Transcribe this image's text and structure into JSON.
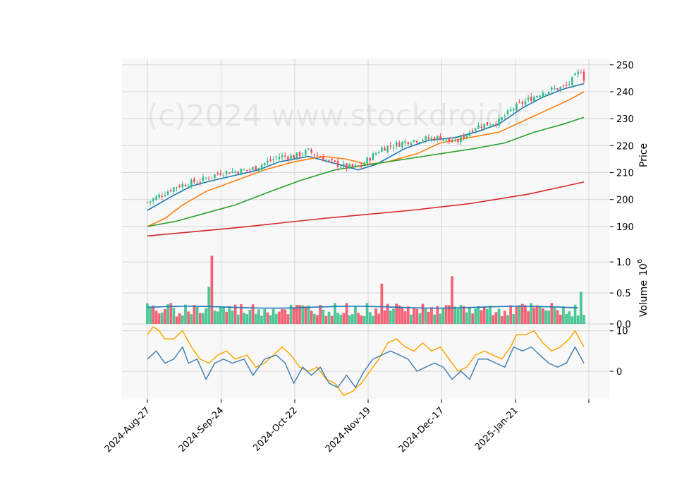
{
  "watermark": "(c)2024 www.stockdroid.c",
  "colors": {
    "up": "#2ebd85",
    "down": "#f6465d",
    "panel_bg": "#f8f8f8",
    "grid": "#d6d6d6",
    "ma_short": "#1f77b4",
    "ma_mid": "#ff7f0e",
    "ma_long": "#2ca02c",
    "ma_200": "#d62728",
    "vol_ma": "#1f77b4",
    "osc_fast": "#4682b4",
    "osc_slow": "#ffa500"
  },
  "chart_data": [
    {
      "type": "candlestick",
      "ylabel": "Price",
      "ylim": [
        185,
        251
      ],
      "yticks": [
        "190",
        "200",
        "210",
        "220",
        "230",
        "240",
        "250"
      ],
      "xticks": [
        "2024-Aug-27",
        "2024-Sep-24",
        "2024-Oct-22",
        "2024-Nov-19",
        "2024-Dec-17",
        "2025-Jan-21"
      ],
      "grid": true,
      "keypoints": [
        {
          "i": 0,
          "close": 199
        },
        {
          "i": 10,
          "close": 205
        },
        {
          "i": 18,
          "close": 207
        },
        {
          "i": 25,
          "close": 210
        },
        {
          "i": 35,
          "close": 211
        },
        {
          "i": 45,
          "close": 216
        },
        {
          "i": 50,
          "close": 216
        },
        {
          "i": 55,
          "close": 218
        },
        {
          "i": 62,
          "close": 214
        },
        {
          "i": 68,
          "close": 212
        },
        {
          "i": 72,
          "close": 212
        },
        {
          "i": 80,
          "close": 219
        },
        {
          "i": 90,
          "close": 222
        },
        {
          "i": 100,
          "close": 223
        },
        {
          "i": 105,
          "close": 221
        },
        {
          "i": 112,
          "close": 227
        },
        {
          "i": 120,
          "close": 229
        },
        {
          "i": 125,
          "close": 234
        },
        {
          "i": 135,
          "close": 240
        },
        {
          "i": 143,
          "close": 242
        },
        {
          "i": 148,
          "close": 248
        },
        {
          "i": 149,
          "close": 245
        }
      ],
      "ma_lines": [
        {
          "color_key": "ma_short",
          "points": [
            [
              0,
              196
            ],
            [
              8,
              201
            ],
            [
              15,
              205
            ],
            [
              22,
              207
            ],
            [
              30,
              209
            ],
            [
              38,
              211
            ],
            [
              45,
              214
            ],
            [
              55,
              216
            ],
            [
              62,
              214
            ],
            [
              72,
              211
            ],
            [
              78,
              213
            ],
            [
              88,
              219
            ],
            [
              96,
              222
            ],
            [
              105,
              223
            ],
            [
              112,
              225
            ],
            [
              120,
              228
            ],
            [
              128,
              234
            ],
            [
              135,
              238
            ],
            [
              142,
              241
            ],
            [
              149,
              243
            ]
          ]
        },
        {
          "color_key": "ma_mid",
          "points": [
            [
              0,
              190
            ],
            [
              6,
              193
            ],
            [
              12,
              198
            ],
            [
              20,
              203
            ],
            [
              30,
              207
            ],
            [
              40,
              211
            ],
            [
              50,
              214
            ],
            [
              60,
              216
            ],
            [
              68,
              215
            ],
            [
              75,
              213
            ],
            [
              82,
              214
            ],
            [
              92,
              217
            ],
            [
              100,
              221
            ],
            [
              110,
              223
            ],
            [
              120,
              225
            ],
            [
              128,
              229
            ],
            [
              136,
              233
            ],
            [
              144,
              237
            ],
            [
              149,
              240
            ]
          ]
        },
        {
          "color_key": "ma_long",
          "points": [
            [
              0,
              190
            ],
            [
              10,
              192
            ],
            [
              20,
              195
            ],
            [
              30,
              198
            ],
            [
              42,
              203
            ],
            [
              52,
              207
            ],
            [
              64,
              211
            ],
            [
              76,
              213
            ],
            [
              88,
              215
            ],
            [
              100,
              217
            ],
            [
              112,
              219
            ],
            [
              122,
              221
            ],
            [
              132,
              225
            ],
            [
              142,
              228
            ],
            [
              149,
              230.5
            ]
          ]
        },
        {
          "color_key": "ma_200",
          "points": [
            [
              0,
              186.5
            ],
            [
              30,
              189.5
            ],
            [
              60,
              193
            ],
            [
              90,
              196
            ],
            [
              110,
              198.5
            ],
            [
              130,
              202
            ],
            [
              149,
              206.5
            ]
          ]
        }
      ]
    },
    {
      "type": "bar",
      "ylabel": "Volume",
      "yexponent": "6",
      "ylim": [
        0,
        1.15
      ],
      "yticks": [
        "0.0",
        "0.5",
        "1.0"
      ],
      "notable": [
        {
          "i": 22,
          "value": 1.1
        },
        {
          "i": 21,
          "value": 0.6
        },
        {
          "i": 80,
          "value": 0.65
        },
        {
          "i": 104,
          "value": 0.77
        },
        {
          "i": 148,
          "value": 0.52
        }
      ],
      "ma_level": 0.27
    },
    {
      "type": "line",
      "ylim": [
        -7,
        11
      ],
      "yticks": [
        "0",
        "10"
      ],
      "series_fast": [
        [
          0,
          3
        ],
        [
          3,
          5
        ],
        [
          6,
          2
        ],
        [
          9,
          3
        ],
        [
          12,
          6
        ],
        [
          14,
          2
        ],
        [
          17,
          3
        ],
        [
          20,
          -2
        ],
        [
          23,
          2
        ],
        [
          26,
          3
        ],
        [
          29,
          2
        ],
        [
          33,
          3
        ],
        [
          36,
          -1
        ],
        [
          40,
          3
        ],
        [
          44,
          4
        ],
        [
          47,
          2
        ],
        [
          50,
          -3
        ],
        [
          53,
          1
        ],
        [
          56,
          -1
        ],
        [
          59,
          1
        ],
        [
          62,
          -3
        ],
        [
          65,
          -4
        ],
        [
          68,
          -1
        ],
        [
          71,
          -4
        ],
        [
          74,
          0
        ],
        [
          77,
          3
        ],
        [
          80,
          4
        ],
        [
          83,
          5
        ],
        [
          86,
          4
        ],
        [
          89,
          3
        ],
        [
          92,
          0
        ],
        [
          95,
          1
        ],
        [
          98,
          2
        ],
        [
          101,
          1
        ],
        [
          104,
          -2
        ],
        [
          107,
          0
        ],
        [
          110,
          -2
        ],
        [
          113,
          3
        ],
        [
          116,
          3
        ],
        [
          119,
          2
        ],
        [
          122,
          1
        ],
        [
          125,
          6
        ],
        [
          128,
          5
        ],
        [
          131,
          6
        ],
        [
          134,
          4
        ],
        [
          137,
          2
        ],
        [
          140,
          1
        ],
        [
          143,
          2
        ],
        [
          146,
          6
        ],
        [
          149,
          2
        ]
      ],
      "series_slow": [
        [
          0,
          9
        ],
        [
          2,
          11
        ],
        [
          4,
          10
        ],
        [
          6,
          8
        ],
        [
          9,
          8
        ],
        [
          12,
          10
        ],
        [
          15,
          6
        ],
        [
          18,
          3
        ],
        [
          21,
          2
        ],
        [
          24,
          4
        ],
        [
          27,
          5
        ],
        [
          30,
          3
        ],
        [
          34,
          4
        ],
        [
          37,
          1
        ],
        [
          40,
          2
        ],
        [
          43,
          4
        ],
        [
          46,
          6
        ],
        [
          49,
          4
        ],
        [
          52,
          1
        ],
        [
          55,
          0
        ],
        [
          58,
          1
        ],
        [
          61,
          -2
        ],
        [
          64,
          -3
        ],
        [
          67,
          -6
        ],
        [
          70,
          -5
        ],
        [
          73,
          -3
        ],
        [
          76,
          0
        ],
        [
          79,
          3
        ],
        [
          82,
          7
        ],
        [
          85,
          8
        ],
        [
          88,
          6
        ],
        [
          91,
          5
        ],
        [
          94,
          7
        ],
        [
          97,
          5
        ],
        [
          100,
          6
        ],
        [
          103,
          3
        ],
        [
          106,
          0
        ],
        [
          109,
          1
        ],
        [
          112,
          4
        ],
        [
          115,
          5
        ],
        [
          118,
          4
        ],
        [
          121,
          3
        ],
        [
          124,
          6
        ],
        [
          126,
          9
        ],
        [
          129,
          9
        ],
        [
          132,
          10
        ],
        [
          135,
          7
        ],
        [
          138,
          5
        ],
        [
          141,
          6
        ],
        [
          144,
          8
        ],
        [
          146,
          10
        ],
        [
          149,
          6
        ]
      ]
    }
  ]
}
